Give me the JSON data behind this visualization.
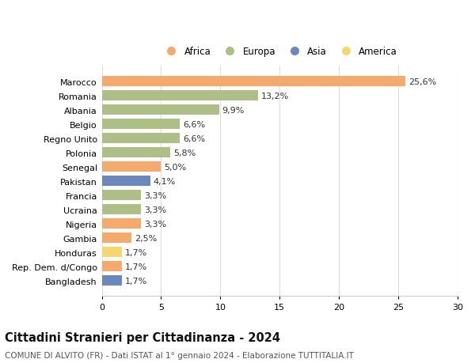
{
  "categories": [
    "Marocco",
    "Romania",
    "Albania",
    "Belgio",
    "Regno Unito",
    "Polonia",
    "Senegal",
    "Pakistan",
    "Francia",
    "Ucraina",
    "Nigeria",
    "Gambia",
    "Honduras",
    "Rep. Dem. d/Congo",
    "Bangladesh"
  ],
  "values": [
    25.6,
    13.2,
    9.9,
    6.6,
    6.6,
    5.8,
    5.0,
    4.1,
    3.3,
    3.3,
    3.3,
    2.5,
    1.7,
    1.7,
    1.7
  ],
  "labels": [
    "25,6%",
    "13,2%",
    "9,9%",
    "6,6%",
    "6,6%",
    "5,8%",
    "5,0%",
    "4,1%",
    "3,3%",
    "3,3%",
    "3,3%",
    "2,5%",
    "1,7%",
    "1,7%",
    "1,7%"
  ],
  "continents": [
    "Africa",
    "Europa",
    "Europa",
    "Europa",
    "Europa",
    "Europa",
    "Africa",
    "Asia",
    "Europa",
    "Europa",
    "Africa",
    "Africa",
    "America",
    "Africa",
    "Asia"
  ],
  "colors": {
    "Africa": "#F5A96B",
    "Europa": "#ADBF87",
    "Asia": "#6B87BE",
    "America": "#F5D76E"
  },
  "legend_order": [
    "Africa",
    "Europa",
    "Asia",
    "America"
  ],
  "xlim": [
    0,
    30
  ],
  "xticks": [
    0,
    5,
    10,
    15,
    20,
    25,
    30
  ],
  "title": "Cittadini Stranieri per Cittadinanza - 2024",
  "subtitle": "COMUNE DI ALVITO (FR) - Dati ISTAT al 1° gennaio 2024 - Elaborazione TUTTITALIA.IT",
  "background_color": "#ffffff",
  "bar_height": 0.72,
  "grid_color": "#dddddd",
  "label_fontsize": 8,
  "ytick_fontsize": 8,
  "xtick_fontsize": 8,
  "title_fontsize": 10.5,
  "subtitle_fontsize": 7.5
}
